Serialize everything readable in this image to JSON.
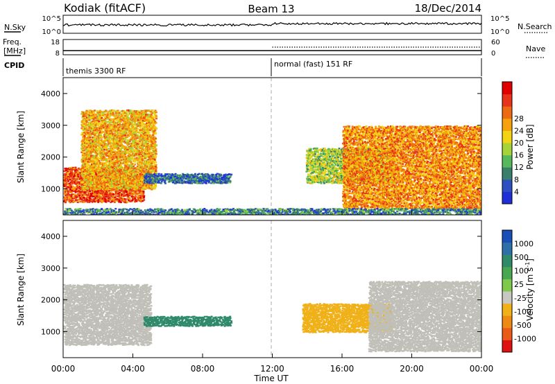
{
  "header": {
    "station": "Kodiak (fitACF)",
    "beam": "Beam 13",
    "date": "18/Dec/2014"
  },
  "noise_panel": {
    "left_label": "N.Sky",
    "right_label": "N.Search",
    "left_ticks": [
      "10^5",
      "10^0"
    ],
    "right_ticks": [
      "10^5",
      "10^0"
    ]
  },
  "freq_panel": {
    "left_label_1": "Freq.",
    "left_label_2": "[MHz]",
    "left_ticks": [
      "18",
      "8"
    ],
    "right_label": "Nave",
    "right_ticks": [
      "60",
      "0"
    ],
    "cpid_label": "CPID",
    "cpid_segments": [
      {
        "label": "themis 3300 RF",
        "start_hour": 0
      },
      {
        "label": "normal (fast) 151 RF",
        "start_hour": 12
      }
    ]
  },
  "x_axis": {
    "label": "Time UT",
    "ticks": [
      "00:00",
      "04:00",
      "08:00",
      "12:00",
      "16:00",
      "20:00",
      "00:00"
    ],
    "tick_hours": [
      0,
      4,
      8,
      12,
      16,
      20,
      24
    ],
    "range": [
      0,
      24
    ]
  },
  "colors": {
    "power_scale": [
      "#1e2fd8",
      "#2d4fbf",
      "#3a7f6a",
      "#58b85c",
      "#a6d23a",
      "#f2d414",
      "#f5a20c",
      "#ee6a12",
      "#e63319",
      "#e00000"
    ],
    "velocity_scale": [
      "#1a4fb8",
      "#2f6fa8",
      "#2f8a6a",
      "#49a651",
      "#7ec84a",
      "#c8c8c0",
      "#f0b018",
      "#ee8a14",
      "#ea5a18",
      "#e01010"
    ],
    "ground_scatter": "#c0bfb8"
  },
  "chart_data": [
    {
      "type": "heatmap",
      "title": "Power",
      "ylabel": "Slant Range [km]",
      "xlabel": "",
      "xlim": [
        0,
        24
      ],
      "ylim": [
        180,
        4500
      ],
      "y_ticks": [
        1000,
        2000,
        3000,
        4000
      ],
      "colorbar": {
        "label": "Power [dB]",
        "ticks": [
          4,
          8,
          12,
          16,
          20,
          24,
          28
        ],
        "range": [
          0,
          32
        ]
      },
      "features": [
        {
          "name": "strong near-range band",
          "x": [
            0.0,
            4.6
          ],
          "y": [
            600,
            1700
          ],
          "value_db": 26
        },
        {
          "name": "rising echo arc",
          "x": [
            1.0,
            5.3
          ],
          "y": [
            1000,
            3500
          ],
          "value_db": 20
        },
        {
          "name": "weak tail",
          "x": [
            4.6,
            9.6
          ],
          "y": [
            1200,
            1500
          ],
          "value_db": 6
        },
        {
          "name": "evening arc",
          "x": [
            13.9,
            19.0
          ],
          "y": [
            1200,
            2300
          ],
          "value_db": 14
        },
        {
          "name": "evening descending arc",
          "x": [
            16.0,
            24.0
          ],
          "y": [
            400,
            3000
          ],
          "value_db": 22
        },
        {
          "name": "near-range echoes",
          "x": [
            0.0,
            24.0
          ],
          "y": [
            200,
            400
          ],
          "value_db": 8
        }
      ]
    },
    {
      "type": "heatmap",
      "title": "Velocity",
      "ylabel": "Slant Range [km]",
      "xlabel": "Time UT",
      "xlim": [
        0,
        24
      ],
      "ylim": [
        180,
        4500
      ],
      "y_ticks": [
        1000,
        2000,
        3000,
        4000
      ],
      "colorbar": {
        "label": "Velocity [m s^-1]",
        "ticks": [
          1000,
          500,
          100,
          25,
          -25,
          -100,
          -500,
          -1000
        ]
      },
      "features": [
        {
          "name": "ground scatter band",
          "x": [
            0.0,
            5.0
          ],
          "y": [
            600,
            2500
          ],
          "value": 0
        },
        {
          "name": "positive velocity tail",
          "x": [
            4.6,
            9.6
          ],
          "y": [
            1200,
            1500
          ],
          "value": 300
        },
        {
          "name": "negative velocity patch",
          "x": [
            13.7,
            18.8
          ],
          "y": [
            1000,
            1900
          ],
          "value": -300
        },
        {
          "name": "evening ground scatter",
          "x": [
            17.5,
            24.0
          ],
          "y": [
            400,
            2600
          ],
          "value": 0
        }
      ]
    }
  ]
}
